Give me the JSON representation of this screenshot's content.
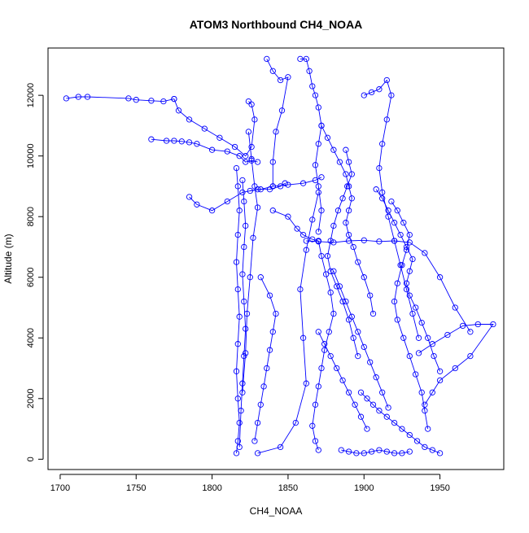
{
  "chart_data": {
    "type": "line",
    "title": "ATOM3 Northbound CH4_NOAA",
    "xlabel": "CH4_NOAA",
    "ylabel": "Altitude (m)",
    "xlim": [
      1692,
      1992
    ],
    "ylim": [
      -340,
      13560
    ],
    "xticks": [
      "1700",
      "1750",
      "1800",
      "1850",
      "1900",
      "1950"
    ],
    "yticks": [
      "0",
      "2000",
      "4000",
      "6000",
      "8000",
      "10000",
      "12000"
    ],
    "grid": false,
    "legend": "none",
    "color": "#0000ff",
    "marker": "open-circle",
    "series": [
      {
        "x": [
          1704,
          1712,
          1718,
          1745,
          1750,
          1760,
          1768,
          1775
        ],
        "y": [
          11900,
          11950,
          11950,
          11900,
          11850,
          11820,
          11800,
          11880
        ]
      },
      {
        "x": [
          1775,
          1778,
          1785,
          1795,
          1805,
          1815,
          1822,
          1826,
          1828,
          1826,
          1824
        ],
        "y": [
          11880,
          11500,
          11200,
          10900,
          10600,
          10300,
          10000,
          10300,
          11200,
          11700,
          11800
        ]
      },
      {
        "x": [
          1760,
          1770,
          1775,
          1780,
          1785,
          1790,
          1800,
          1810,
          1818,
          1822,
          1826,
          1830
        ],
        "y": [
          10550,
          10500,
          10500,
          10480,
          10450,
          10400,
          10200,
          10150,
          10000,
          9800,
          9850,
          9800
        ]
      },
      {
        "x": [
          1816,
          1817,
          1818,
          1817,
          1816,
          1817,
          1818,
          1817,
          1816,
          1817,
          1818,
          1817,
          1816
        ],
        "y": [
          9600,
          9000,
          8200,
          7400,
          6500,
          5600,
          4700,
          3800,
          2900,
          2000,
          1200,
          600,
          200
        ]
      },
      {
        "x": [
          1820,
          1821,
          1822,
          1821,
          1820,
          1821,
          1822,
          1821,
          1820,
          1819,
          1818
        ],
        "y": [
          9200,
          8500,
          7700,
          7000,
          6100,
          5200,
          4300,
          3400,
          2500,
          1600,
          400
        ]
      },
      {
        "x": [
          1824,
          1826,
          1828,
          1830,
          1827,
          1825,
          1823,
          1822,
          1820
        ],
        "y": [
          10800,
          9900,
          9000,
          8300,
          7300,
          6000,
          4800,
          3500,
          2200
        ]
      },
      {
        "x": [
          1785,
          1790,
          1800,
          1810,
          1820,
          1830,
          1838,
          1845,
          1848
        ],
        "y": [
          8650,
          8400,
          8200,
          8500,
          8800,
          8900,
          8900,
          9000,
          9100
        ]
      },
      {
        "x": [
          1825,
          1832,
          1840,
          1850,
          1860,
          1868,
          1872
        ],
        "y": [
          8850,
          8900,
          9000,
          9050,
          9100,
          9200,
          9300
        ]
      },
      {
        "x": [
          1840,
          1850,
          1856,
          1860,
          1866,
          1870
        ],
        "y": [
          8200,
          8000,
          7600,
          7400,
          7250,
          7200
        ]
      },
      {
        "x": [
          1830,
          1845,
          1855,
          1862,
          1860,
          1858,
          1862,
          1866,
          1870
        ],
        "y": [
          200,
          400,
          1200,
          2500,
          4000,
          5600,
          6900,
          7900,
          8800
        ]
      },
      {
        "x": [
          1836,
          1840,
          1845,
          1850,
          1846,
          1842,
          1840,
          1840
        ],
        "y": [
          13200,
          12800,
          12500,
          12600,
          11500,
          10800,
          9800,
          9000
        ]
      },
      {
        "x": [
          1858,
          1862,
          1864,
          1866,
          1868,
          1870,
          1872,
          1870,
          1868,
          1870,
          1872,
          1870
        ],
        "y": [
          13200,
          13200,
          12800,
          12300,
          12000,
          11600,
          11000,
          10400,
          9700,
          9000,
          8200,
          7500
        ]
      },
      {
        "x": [
          1870,
          1872,
          1875,
          1878,
          1880,
          1877,
          1874,
          1872,
          1870,
          1868,
          1866,
          1868,
          1870
        ],
        "y": [
          7200,
          6700,
          6100,
          5500,
          4800,
          4200,
          3600,
          3000,
          2400,
          1800,
          1100,
          600,
          300
        ]
      },
      {
        "x": [
          1872,
          1876,
          1880,
          1884,
          1888,
          1890,
          1892,
          1890,
          1888,
          1890,
          1893,
          1896,
          1900,
          1904,
          1906
        ],
        "y": [
          11000,
          10600,
          10200,
          9800,
          9400,
          9000,
          8600,
          8200,
          7800,
          7400,
          7000,
          6500,
          6000,
          5400,
          4800
        ]
      },
      {
        "x": [
          1888,
          1890,
          1892,
          1889,
          1886,
          1883,
          1880,
          1878,
          1876,
          1878,
          1882,
          1886,
          1890,
          1893,
          1896
        ],
        "y": [
          10200,
          9800,
          9400,
          9000,
          8600,
          8200,
          7700,
          7200,
          6700,
          6200,
          5700,
          5200,
          4600,
          4000,
          3400
        ]
      },
      {
        "x": [
          1862,
          1870,
          1880,
          1890,
          1900,
          1910,
          1920,
          1930,
          1940,
          1950,
          1960,
          1970
        ],
        "y": [
          7200,
          7180,
          7150,
          7200,
          7220,
          7180,
          7200,
          7150,
          6800,
          6000,
          5000,
          4200
        ]
      },
      {
        "x": [
          1900,
          1905,
          1910,
          1915,
          1918,
          1915,
          1912,
          1910,
          1912,
          1916,
          1920,
          1924,
          1928,
          1932,
          1936
        ],
        "y": [
          12000,
          12100,
          12200,
          12500,
          12000,
          11200,
          10400,
          9600,
          8800,
          8000,
          7200,
          6400,
          5600,
          4800,
          4000
        ]
      },
      {
        "x": [
          1918,
          1922,
          1926,
          1930,
          1928,
          1925,
          1922,
          1920,
          1922,
          1926,
          1930,
          1934,
          1938,
          1940,
          1942
        ],
        "y": [
          8500,
          8200,
          7800,
          7400,
          6900,
          6400,
          5800,
          5200,
          4600,
          4000,
          3400,
          2800,
          2200,
          1600,
          1000
        ]
      },
      {
        "x": [
          1908,
          1912,
          1916,
          1920,
          1924,
          1928,
          1932,
          1930,
          1928,
          1930,
          1934,
          1938,
          1942,
          1946,
          1950
        ],
        "y": [
          8900,
          8600,
          8200,
          7800,
          7400,
          7000,
          6600,
          6200,
          5800,
          5400,
          5000,
          4500,
          4000,
          3400,
          2900
        ]
      },
      {
        "x": [
          1936,
          1945,
          1955,
          1965,
          1975,
          1985,
          1970,
          1960,
          1950,
          1945,
          1940
        ],
        "y": [
          3500,
          3800,
          4100,
          4400,
          4450,
          4450,
          3400,
          3000,
          2600,
          2200,
          1800
        ]
      },
      {
        "x": [
          1898,
          1902,
          1906,
          1910,
          1915,
          1920,
          1925,
          1930,
          1935,
          1940,
          1945,
          1950
        ],
        "y": [
          2200,
          2000,
          1800,
          1600,
          1400,
          1200,
          1000,
          800,
          600,
          400,
          300,
          200
        ]
      },
      {
        "x": [
          1885,
          1890,
          1895,
          1900,
          1905,
          1910,
          1915,
          1920,
          1925,
          1930
        ],
        "y": [
          300,
          250,
          200,
          200,
          250,
          300,
          250,
          200,
          200,
          250
        ]
      },
      {
        "x": [
          1832,
          1838,
          1842,
          1840,
          1838,
          1836,
          1834,
          1832,
          1830,
          1828
        ],
        "y": [
          6000,
          5400,
          4800,
          4200,
          3600,
          3000,
          2400,
          1800,
          1200,
          600
        ]
      },
      {
        "x": [
          1870,
          1874,
          1878,
          1882,
          1886,
          1890,
          1894,
          1898,
          1902
        ],
        "y": [
          4200,
          3800,
          3400,
          3000,
          2600,
          2200,
          1800,
          1400,
          1000
        ]
      },
      {
        "x": [
          1880,
          1884,
          1888,
          1892,
          1896,
          1900,
          1904,
          1908,
          1912,
          1916
        ],
        "y": [
          6200,
          5700,
          5200,
          4700,
          4200,
          3700,
          3200,
          2700,
          2200,
          1700
        ]
      }
    ]
  }
}
